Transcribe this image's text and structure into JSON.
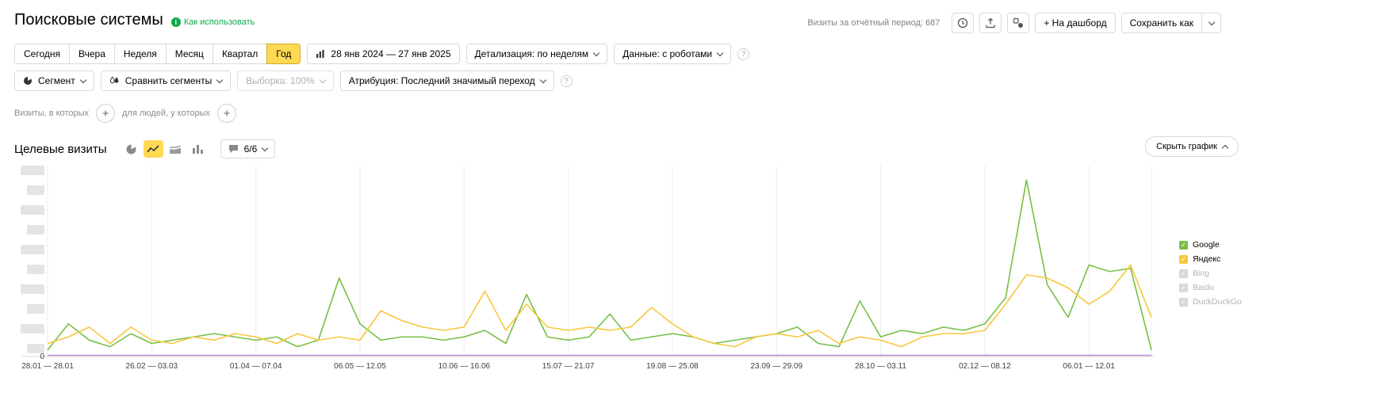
{
  "header": {
    "title": "Поисковые системы",
    "help_link": "Как использовать",
    "visits_summary": "Визиты за отчётный период: 687",
    "dashboard_button": "+ На дашборд",
    "save_as_button": "Сохранить как"
  },
  "toolbar": {
    "periods": [
      "Сегодня",
      "Вчера",
      "Неделя",
      "Месяц",
      "Квартал",
      "Год"
    ],
    "active_period": "Год",
    "date_range": "28 янв 2024 — 27 янв 2025",
    "detail": "Детализация: по неделям",
    "data_mode": "Данные: с роботами"
  },
  "segments": {
    "segment": "Сегмент",
    "compare": "Сравнить сегменты",
    "sampling": "Выборка: 100%",
    "attribution": "Атрибуция: Последний значимый переход"
  },
  "filters": {
    "visits": "Визиты, в которых",
    "people": "для людей, у которых"
  },
  "chart_section": {
    "title": "Целевые визиты",
    "metric_count": "6/6",
    "hide_chart": "Скрыть график"
  },
  "legend": [
    {
      "label": "Google",
      "color": "#77c043",
      "enabled": true
    },
    {
      "label": "Яндекс",
      "color": "#f8c73d",
      "enabled": true
    },
    {
      "label": "Bing",
      "color": "#d8d8d8",
      "enabled": false
    },
    {
      "label": "Baidu",
      "color": "#d8d8d8",
      "enabled": false
    },
    {
      "label": "DuckDuckGo",
      "color": "#d8d8d8",
      "enabled": false
    }
  ],
  "chart_data": {
    "type": "line",
    "title": "Целевые визиты",
    "x_tick_labels": [
      "28.01 — 28.01",
      "26.02 — 03.03",
      "01.04 — 07.04",
      "06.05 — 12.05",
      "10.06 — 16.06",
      "15.07 — 21.07",
      "19.08 — 25.08",
      "23.09 — 29.09",
      "28.10 — 03.11",
      "02.12 — 08.12",
      "06.01 — 12.01"
    ],
    "x_tick_step": 5,
    "y_axis": {
      "min_label": "0",
      "redacted_labels": 10
    },
    "ylim": [
      0,
      28
    ],
    "grid": true,
    "legend_position": "right",
    "series": [
      {
        "name": "Google",
        "color": "#77c043",
        "values": [
          1,
          5,
          2.5,
          1.5,
          3.5,
          2,
          2.5,
          3,
          3.5,
          3,
          2.5,
          3,
          1.5,
          2.5,
          12,
          5,
          2.5,
          3,
          3,
          2.5,
          3,
          4,
          2,
          9.5,
          3,
          2.5,
          3,
          6.5,
          2.5,
          3,
          3.5,
          3,
          2,
          2.5,
          3,
          3.5,
          4.5,
          2,
          1.5,
          8.5,
          3,
          4,
          3.5,
          4.5,
          4,
          5,
          9,
          27,
          11,
          6,
          14,
          13,
          13.5,
          1
        ]
      },
      {
        "name": "Яндекс",
        "color": "#f8c73d",
        "values": [
          2,
          3,
          4.5,
          2,
          4.5,
          2.5,
          2,
          3,
          2.5,
          3.5,
          3,
          2,
          3.5,
          2.5,
          3,
          2.5,
          7,
          5.5,
          4.5,
          4,
          4.5,
          10,
          4,
          8,
          4.5,
          4,
          4.5,
          4,
          4.5,
          7.5,
          5,
          3,
          2,
          1.5,
          3,
          3.5,
          3,
          4,
          2,
          3,
          2.5,
          1.5,
          3,
          3.5,
          3.5,
          4,
          8,
          12.5,
          12,
          10.5,
          8,
          10,
          14,
          6
        ]
      }
    ],
    "flat_series": {
      "color": "#b593d6",
      "value": 0
    }
  }
}
